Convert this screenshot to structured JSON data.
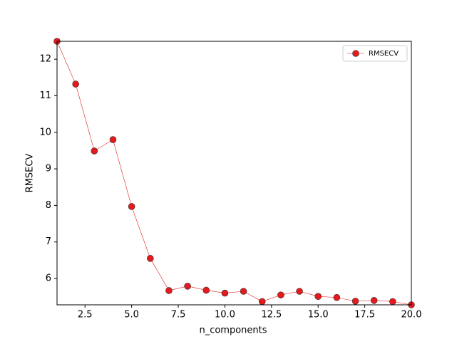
{
  "chart_data": {
    "type": "line",
    "x_label": "n_components",
    "y_label": "RMSECV",
    "x": [
      1,
      2,
      3,
      4,
      5,
      6,
      7,
      8,
      9,
      10,
      11,
      12,
      13,
      14,
      15,
      16,
      17,
      18,
      19,
      20
    ],
    "series": [
      {
        "name": "RMSECV",
        "color": "#e41a1c",
        "values": [
          12.49,
          11.32,
          9.49,
          9.8,
          7.97,
          6.55,
          5.67,
          5.79,
          5.68,
          5.6,
          5.65,
          5.37,
          5.55,
          5.65,
          5.51,
          5.48,
          5.38,
          5.4,
          5.37,
          5.28
        ]
      }
    ],
    "xlim": [
      1,
      20
    ],
    "xticks": [
      {
        "value": 2.5,
        "label": "2.5"
      },
      {
        "value": 5,
        "label": "5.0"
      },
      {
        "value": 7.5,
        "label": "7.5"
      },
      {
        "value": 10,
        "label": "10.0"
      },
      {
        "value": 12.5,
        "label": "12.5"
      },
      {
        "value": 15,
        "label": "15.0"
      },
      {
        "value": 17.5,
        "label": "17.5"
      },
      {
        "value": 20,
        "label": "20.0"
      }
    ],
    "ylim": [
      5.28,
      12.49
    ],
    "yticks": [
      6,
      7,
      8,
      9,
      10,
      11,
      12
    ],
    "legend": "upper right"
  }
}
